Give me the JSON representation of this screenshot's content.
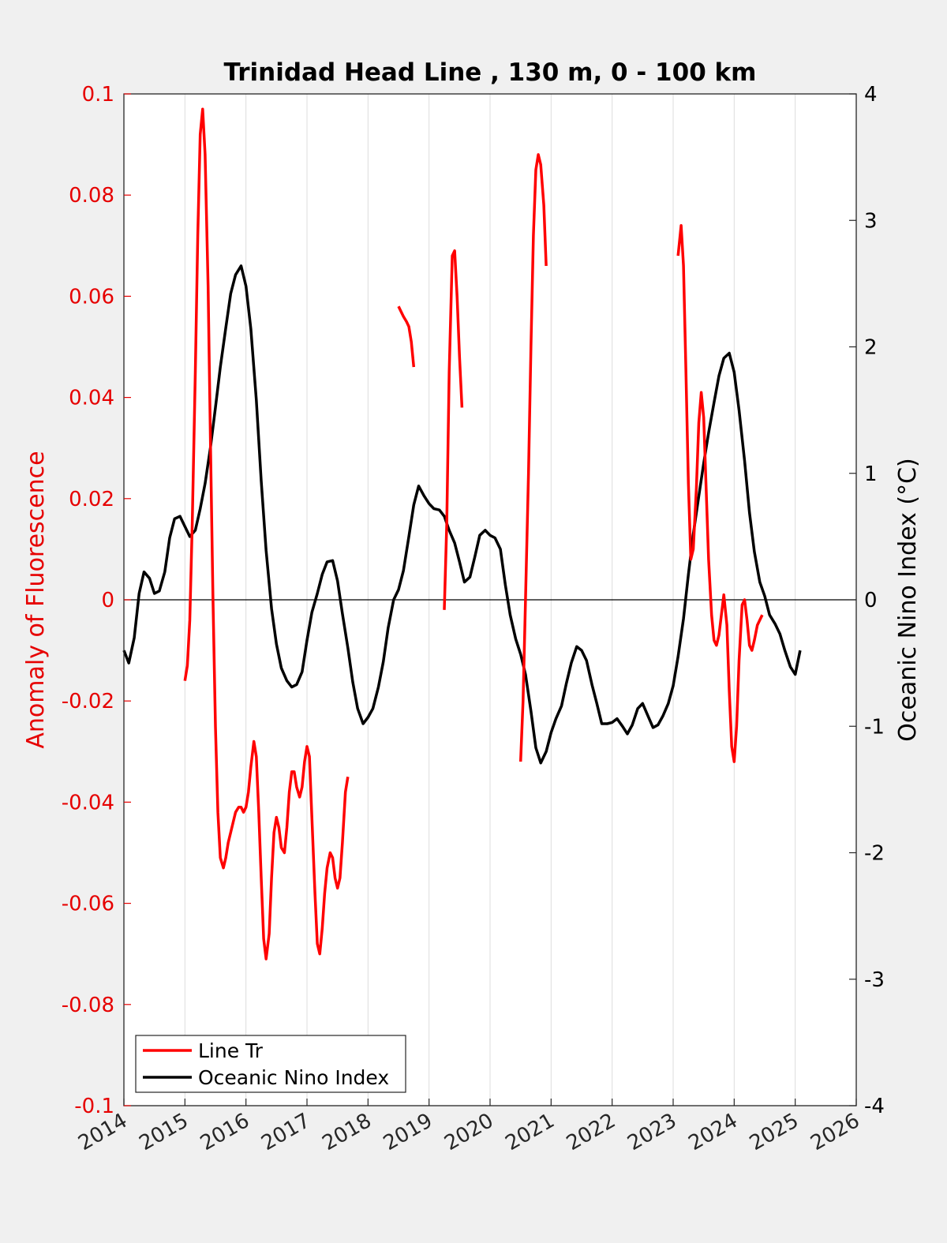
{
  "chart_data": {
    "type": "line",
    "title": "Trinidad Head Line , 130 m, 0 - 100 km",
    "xlabel": "",
    "ylabel_left": "Anomaly of Fluorescence",
    "ylabel_right": "Oceanic Nino Index (°C)",
    "xlim": [
      2014,
      2026
    ],
    "ylim_left": [
      -0.1,
      0.1
    ],
    "ylim_right": [
      -4,
      4
    ],
    "x_ticks": [
      "2014",
      "2015",
      "2016",
      "2017",
      "2018",
      "2019",
      "2020",
      "2021",
      "2022",
      "2023",
      "2024",
      "2025",
      "2026"
    ],
    "y_ticks_left": [
      "-0.1",
      "-0.08",
      "-0.06",
      "-0.04",
      "-0.02",
      "0",
      "0.02",
      "0.04",
      "0.06",
      "0.08",
      "0.1"
    ],
    "y_ticks_right": [
      "-4",
      "-3",
      "-2",
      "-1",
      "0",
      "1",
      "2",
      "3",
      "4"
    ],
    "grid": "vertical",
    "zero_line": true,
    "legend_position": "bottom-left",
    "colors": {
      "line_tr": "#ff0000",
      "oni": "#000000",
      "axis_left": "#e60000"
    },
    "series": [
      {
        "name": "Line Tr",
        "axis": "left",
        "segments": [
          [
            [
              2015.0,
              -0.016
            ],
            [
              2015.04,
              -0.013
            ],
            [
              2015.08,
              -0.004
            ],
            [
              2015.12,
              0.015
            ],
            [
              2015.17,
              0.045
            ],
            [
              2015.21,
              0.072
            ],
            [
              2015.25,
              0.092
            ],
            [
              2015.29,
              0.097
            ],
            [
              2015.33,
              0.088
            ],
            [
              2015.38,
              0.062
            ],
            [
              2015.42,
              0.03
            ],
            [
              2015.46,
              0.0
            ],
            [
              2015.5,
              -0.025
            ],
            [
              2015.54,
              -0.042
            ],
            [
              2015.58,
              -0.051
            ],
            [
              2015.63,
              -0.053
            ],
            [
              2015.67,
              -0.051
            ],
            [
              2015.71,
              -0.048
            ],
            [
              2015.75,
              -0.046
            ],
            [
              2015.79,
              -0.044
            ],
            [
              2015.83,
              -0.042
            ],
            [
              2015.88,
              -0.041
            ],
            [
              2015.92,
              -0.041
            ],
            [
              2015.96,
              -0.042
            ],
            [
              2016.0,
              -0.041
            ],
            [
              2016.04,
              -0.038
            ],
            [
              2016.08,
              -0.033
            ],
            [
              2016.13,
              -0.028
            ],
            [
              2016.17,
              -0.031
            ],
            [
              2016.21,
              -0.042
            ],
            [
              2016.25,
              -0.055
            ],
            [
              2016.29,
              -0.067
            ],
            [
              2016.33,
              -0.071
            ],
            [
              2016.38,
              -0.066
            ],
            [
              2016.42,
              -0.055
            ],
            [
              2016.46,
              -0.046
            ],
            [
              2016.5,
              -0.043
            ],
            [
              2016.54,
              -0.045
            ],
            [
              2016.58,
              -0.049
            ],
            [
              2016.63,
              -0.05
            ],
            [
              2016.67,
              -0.045
            ],
            [
              2016.71,
              -0.038
            ],
            [
              2016.75,
              -0.034
            ],
            [
              2016.79,
              -0.034
            ],
            [
              2016.83,
              -0.037
            ],
            [
              2016.88,
              -0.039
            ],
            [
              2016.92,
              -0.037
            ],
            [
              2016.96,
              -0.032
            ],
            [
              2017.0,
              -0.029
            ],
            [
              2017.04,
              -0.031
            ],
            [
              2017.08,
              -0.043
            ],
            [
              2017.13,
              -0.058
            ],
            [
              2017.17,
              -0.068
            ],
            [
              2017.21,
              -0.07
            ],
            [
              2017.25,
              -0.065
            ],
            [
              2017.29,
              -0.058
            ],
            [
              2017.33,
              -0.053
            ],
            [
              2017.38,
              -0.05
            ],
            [
              2017.42,
              -0.051
            ],
            [
              2017.46,
              -0.055
            ],
            [
              2017.5,
              -0.057
            ],
            [
              2017.54,
              -0.055
            ],
            [
              2017.58,
              -0.048
            ],
            [
              2017.63,
              -0.038
            ],
            [
              2017.67,
              -0.035
            ]
          ],
          [
            [
              2018.5,
              0.058
            ],
            [
              2018.54,
              0.057
            ],
            [
              2018.58,
              0.056
            ],
            [
              2018.63,
              0.055
            ],
            [
              2018.67,
              0.054
            ],
            [
              2018.71,
              0.051
            ],
            [
              2018.75,
              0.046
            ]
          ],
          [
            [
              2019.25,
              -0.002
            ],
            [
              2019.29,
              0.015
            ],
            [
              2019.33,
              0.045
            ],
            [
              2019.38,
              0.068
            ],
            [
              2019.42,
              0.069
            ],
            [
              2019.46,
              0.06
            ],
            [
              2019.5,
              0.048
            ],
            [
              2019.54,
              0.038
            ]
          ],
          [
            [
              2020.5,
              -0.032
            ],
            [
              2020.54,
              -0.02
            ],
            [
              2020.58,
              0.0
            ],
            [
              2020.63,
              0.025
            ],
            [
              2020.67,
              0.05
            ],
            [
              2020.71,
              0.072
            ],
            [
              2020.75,
              0.085
            ],
            [
              2020.79,
              0.088
            ],
            [
              2020.83,
              0.086
            ],
            [
              2020.88,
              0.078
            ],
            [
              2020.92,
              0.066
            ]
          ],
          [
            [
              2023.08,
              0.068
            ],
            [
              2023.13,
              0.074
            ],
            [
              2023.17,
              0.066
            ],
            [
              2023.21,
              0.045
            ],
            [
              2023.25,
              0.023
            ],
            [
              2023.29,
              0.008
            ],
            [
              2023.33,
              0.01
            ],
            [
              2023.38,
              0.022
            ],
            [
              2023.42,
              0.035
            ],
            [
              2023.46,
              0.041
            ],
            [
              2023.5,
              0.036
            ],
            [
              2023.54,
              0.022
            ],
            [
              2023.58,
              0.008
            ],
            [
              2023.63,
              -0.003
            ],
            [
              2023.67,
              -0.008
            ],
            [
              2023.71,
              -0.009
            ],
            [
              2023.75,
              -0.007
            ],
            [
              2023.79,
              -0.003
            ],
            [
              2023.83,
              0.001
            ],
            [
              2023.88,
              -0.005
            ],
            [
              2023.92,
              -0.018
            ],
            [
              2023.96,
              -0.029
            ],
            [
              2024.0,
              -0.032
            ],
            [
              2024.04,
              -0.025
            ],
            [
              2024.08,
              -0.012
            ],
            [
              2024.13,
              -0.001
            ],
            [
              2024.17,
              0.0
            ],
            [
              2024.21,
              -0.004
            ],
            [
              2024.25,
              -0.009
            ],
            [
              2024.29,
              -0.01
            ],
            [
              2024.33,
              -0.008
            ],
            [
              2024.38,
              -0.005
            ],
            [
              2024.42,
              -0.004
            ],
            [
              2024.46,
              -0.003
            ]
          ]
        ]
      },
      {
        "name": "Oceanic Nino Index",
        "axis": "right",
        "points": [
          [
            2014.0,
            -0.4
          ],
          [
            2014.08,
            -0.5
          ],
          [
            2014.17,
            -0.3
          ],
          [
            2014.25,
            0.05
          ],
          [
            2014.33,
            0.22
          ],
          [
            2014.42,
            0.17
          ],
          [
            2014.5,
            0.05
          ],
          [
            2014.58,
            0.07
          ],
          [
            2014.67,
            0.22
          ],
          [
            2014.75,
            0.49
          ],
          [
            2014.83,
            0.64
          ],
          [
            2014.92,
            0.66
          ],
          [
            2015.0,
            0.58
          ],
          [
            2015.08,
            0.5
          ],
          [
            2015.17,
            0.55
          ],
          [
            2015.25,
            0.72
          ],
          [
            2015.33,
            0.92
          ],
          [
            2015.42,
            1.21
          ],
          [
            2015.5,
            1.52
          ],
          [
            2015.58,
            1.84
          ],
          [
            2015.67,
            2.15
          ],
          [
            2015.75,
            2.42
          ],
          [
            2015.83,
            2.57
          ],
          [
            2015.92,
            2.64
          ],
          [
            2016.0,
            2.48
          ],
          [
            2016.08,
            2.14
          ],
          [
            2016.17,
            1.58
          ],
          [
            2016.25,
            0.94
          ],
          [
            2016.33,
            0.39
          ],
          [
            2016.42,
            -0.07
          ],
          [
            2016.5,
            -0.35
          ],
          [
            2016.58,
            -0.54
          ],
          [
            2016.67,
            -0.64
          ],
          [
            2016.75,
            -0.69
          ],
          [
            2016.83,
            -0.67
          ],
          [
            2016.92,
            -0.57
          ],
          [
            2017.0,
            -0.32
          ],
          [
            2017.08,
            -0.1
          ],
          [
            2017.17,
            0.05
          ],
          [
            2017.25,
            0.2
          ],
          [
            2017.33,
            0.3
          ],
          [
            2017.42,
            0.31
          ],
          [
            2017.5,
            0.15
          ],
          [
            2017.58,
            -0.11
          ],
          [
            2017.67,
            -0.38
          ],
          [
            2017.75,
            -0.65
          ],
          [
            2017.83,
            -0.86
          ],
          [
            2017.92,
            -0.98
          ],
          [
            2018.0,
            -0.93
          ],
          [
            2018.08,
            -0.86
          ],
          [
            2018.17,
            -0.69
          ],
          [
            2018.25,
            -0.49
          ],
          [
            2018.33,
            -0.22
          ],
          [
            2018.42,
            0.0
          ],
          [
            2018.5,
            0.08
          ],
          [
            2018.58,
            0.23
          ],
          [
            2018.67,
            0.5
          ],
          [
            2018.75,
            0.75
          ],
          [
            2018.83,
            0.9
          ],
          [
            2018.92,
            0.82
          ],
          [
            2019.0,
            0.76
          ],
          [
            2019.08,
            0.72
          ],
          [
            2019.17,
            0.71
          ],
          [
            2019.25,
            0.66
          ],
          [
            2019.33,
            0.55
          ],
          [
            2019.42,
            0.45
          ],
          [
            2019.5,
            0.3
          ],
          [
            2019.58,
            0.14
          ],
          [
            2019.67,
            0.18
          ],
          [
            2019.75,
            0.34
          ],
          [
            2019.83,
            0.51
          ],
          [
            2019.92,
            0.55
          ],
          [
            2020.0,
            0.51
          ],
          [
            2020.08,
            0.49
          ],
          [
            2020.17,
            0.4
          ],
          [
            2020.25,
            0.12
          ],
          [
            2020.33,
            -0.12
          ],
          [
            2020.42,
            -0.31
          ],
          [
            2020.5,
            -0.43
          ],
          [
            2020.58,
            -0.59
          ],
          [
            2020.67,
            -0.88
          ],
          [
            2020.75,
            -1.17
          ],
          [
            2020.83,
            -1.29
          ],
          [
            2020.92,
            -1.2
          ],
          [
            2021.0,
            -1.05
          ],
          [
            2021.08,
            -0.94
          ],
          [
            2021.17,
            -0.84
          ],
          [
            2021.25,
            -0.66
          ],
          [
            2021.33,
            -0.5
          ],
          [
            2021.42,
            -0.37
          ],
          [
            2021.5,
            -0.4
          ],
          [
            2021.58,
            -0.48
          ],
          [
            2021.67,
            -0.67
          ],
          [
            2021.75,
            -0.82
          ],
          [
            2021.83,
            -0.98
          ],
          [
            2021.92,
            -0.98
          ],
          [
            2022.0,
            -0.97
          ],
          [
            2022.08,
            -0.94
          ],
          [
            2022.17,
            -1.0
          ],
          [
            2022.25,
            -1.06
          ],
          [
            2022.33,
            -0.99
          ],
          [
            2022.42,
            -0.86
          ],
          [
            2022.5,
            -0.82
          ],
          [
            2022.58,
            -0.91
          ],
          [
            2022.67,
            -1.01
          ],
          [
            2022.75,
            -0.99
          ],
          [
            2022.83,
            -0.92
          ],
          [
            2022.92,
            -0.82
          ],
          [
            2023.0,
            -0.68
          ],
          [
            2023.08,
            -0.45
          ],
          [
            2023.17,
            -0.15
          ],
          [
            2023.25,
            0.2
          ],
          [
            2023.33,
            0.52
          ],
          [
            2023.42,
            0.82
          ],
          [
            2023.5,
            1.08
          ],
          [
            2023.58,
            1.32
          ],
          [
            2023.67,
            1.56
          ],
          [
            2023.75,
            1.77
          ],
          [
            2023.83,
            1.91
          ],
          [
            2023.92,
            1.95
          ],
          [
            2024.0,
            1.8
          ],
          [
            2024.08,
            1.5
          ],
          [
            2024.17,
            1.1
          ],
          [
            2024.25,
            0.69
          ],
          [
            2024.33,
            0.38
          ],
          [
            2024.42,
            0.14
          ],
          [
            2024.5,
            0.03
          ],
          [
            2024.58,
            -0.12
          ],
          [
            2024.67,
            -0.19
          ],
          [
            2024.75,
            -0.27
          ],
          [
            2024.83,
            -0.4
          ],
          [
            2024.92,
            -0.53
          ],
          [
            2025.0,
            -0.59
          ],
          [
            2025.08,
            -0.4
          ]
        ]
      }
    ]
  },
  "legend": {
    "items": [
      {
        "label": "Line Tr",
        "color": "#ff0000"
      },
      {
        "label": "Oceanic Nino Index",
        "color": "#000000"
      }
    ]
  }
}
